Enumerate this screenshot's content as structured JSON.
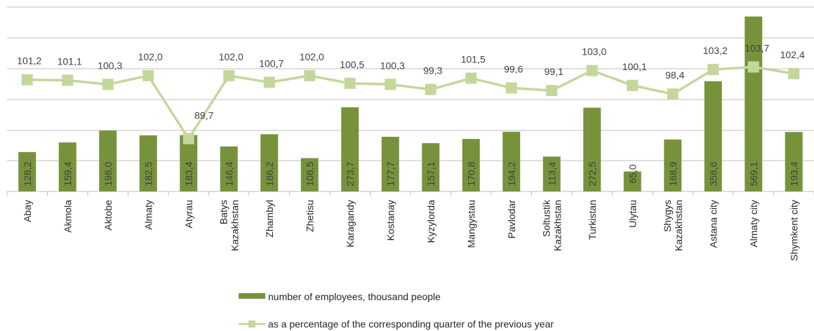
{
  "chart_data": {
    "type": "bar",
    "categories": [
      "Abay",
      "Akmola",
      "Aktobe",
      "Almaty",
      "Atyrau",
      "Batys Kazakhstan",
      "Zhambyl",
      "Zhetisu",
      "Karagandy",
      "Kostanay",
      "Kyzylorda",
      "Mangystau",
      "Pavlodar",
      "Soltustik Kazakhstan",
      "Turkistan",
      "Ulytau",
      "Shygys Kazakhstan",
      "Astana city",
      "Almaty city",
      "Shymkent city"
    ],
    "category_lines": [
      [
        "Abay"
      ],
      [
        "Akmola"
      ],
      [
        "Aktobe"
      ],
      [
        "Almaty"
      ],
      [
        "Atyrau"
      ],
      [
        "Batys",
        "Kazakhstan"
      ],
      [
        "Zhambyl"
      ],
      [
        "Zhetisu"
      ],
      [
        "Karagandy"
      ],
      [
        "Kostanay"
      ],
      [
        "Kyzylorda"
      ],
      [
        "Mangystau"
      ],
      [
        "Pavlodar"
      ],
      [
        "Soltustik",
        "Kazakhstan"
      ],
      [
        "Turkistan"
      ],
      [
        "Ulytau"
      ],
      [
        "Shygys",
        "Kazakhstan"
      ],
      [
        "Astana city"
      ],
      [
        "Almaty city"
      ],
      [
        "Shymkent city"
      ]
    ],
    "series": [
      {
        "name": "number of employees, thousand people",
        "type": "bar",
        "values": [
          128.2,
          159.4,
          198.0,
          182.5,
          183.4,
          146.4,
          186.2,
          108.5,
          273.7,
          177.7,
          157.1,
          170.8,
          194.2,
          113.4,
          272.5,
          65.0,
          168.9,
          358.6,
          569.1,
          193.4
        ],
        "labels": [
          "128,2",
          "159,4",
          "198,0",
          "182,5",
          "183,4",
          "146,4",
          "186,2",
          "108,5",
          "273,7",
          "177,7",
          "157,1",
          "170,8",
          "194,2",
          "113,4",
          "272,5",
          "65,0",
          "168,9",
          "358,6",
          "569,1",
          "193,4"
        ],
        "color": "#76933c"
      },
      {
        "name": "as a percentage of the corresponding quarter of the previous year",
        "type": "line",
        "values": [
          101.2,
          101.1,
          100.3,
          102.0,
          89.7,
          102.0,
          100.7,
          102.0,
          100.5,
          100.3,
          99.3,
          101.5,
          99.6,
          99.1,
          103.0,
          100.1,
          98.4,
          103.2,
          103.7,
          102.4
        ],
        "labels": [
          "101,2",
          "101,1",
          "100,3",
          "102,0",
          "89,7",
          "102,0",
          "100,7",
          "102,0",
          "100,5",
          "100,3",
          "99,3",
          "101,5",
          "99,6",
          "99,1",
          "103,0",
          "100,1",
          "98,4",
          "103,2",
          "103,7",
          "102,4"
        ],
        "color": "#c4d79b"
      }
    ],
    "ylim_bar": [
      0,
      600
    ],
    "grid": true,
    "legend_position": "bottom"
  }
}
